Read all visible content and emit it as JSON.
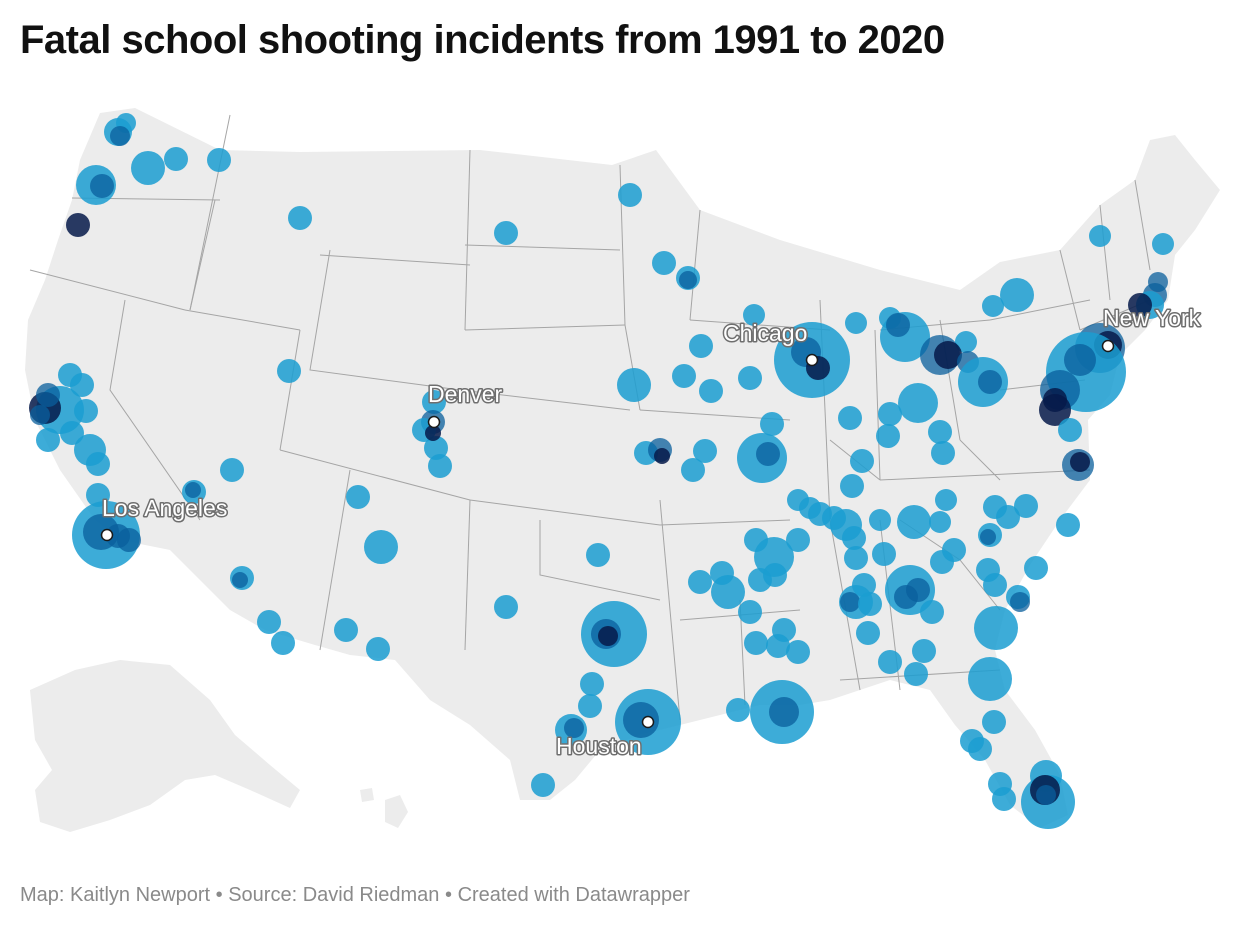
{
  "title": "Fatal school shooting incidents from 1991 to 2020",
  "footer": {
    "map_credit": "Map: Kaitlyn Newport",
    "separator": "•",
    "source": "Source: David Riedman",
    "created_with": "Created with Datawrapper"
  },
  "map": {
    "land_color": "#ececec",
    "border_color": "#a5a5a5",
    "bubble_color": "#1b9ed1",
    "bubble_dark_color": "#061a4a",
    "cities": [
      {
        "name": "Chicago"
      },
      {
        "name": "New York"
      },
      {
        "name": "Denver"
      },
      {
        "name": "Los Angeles"
      },
      {
        "name": "Houston"
      }
    ]
  }
}
